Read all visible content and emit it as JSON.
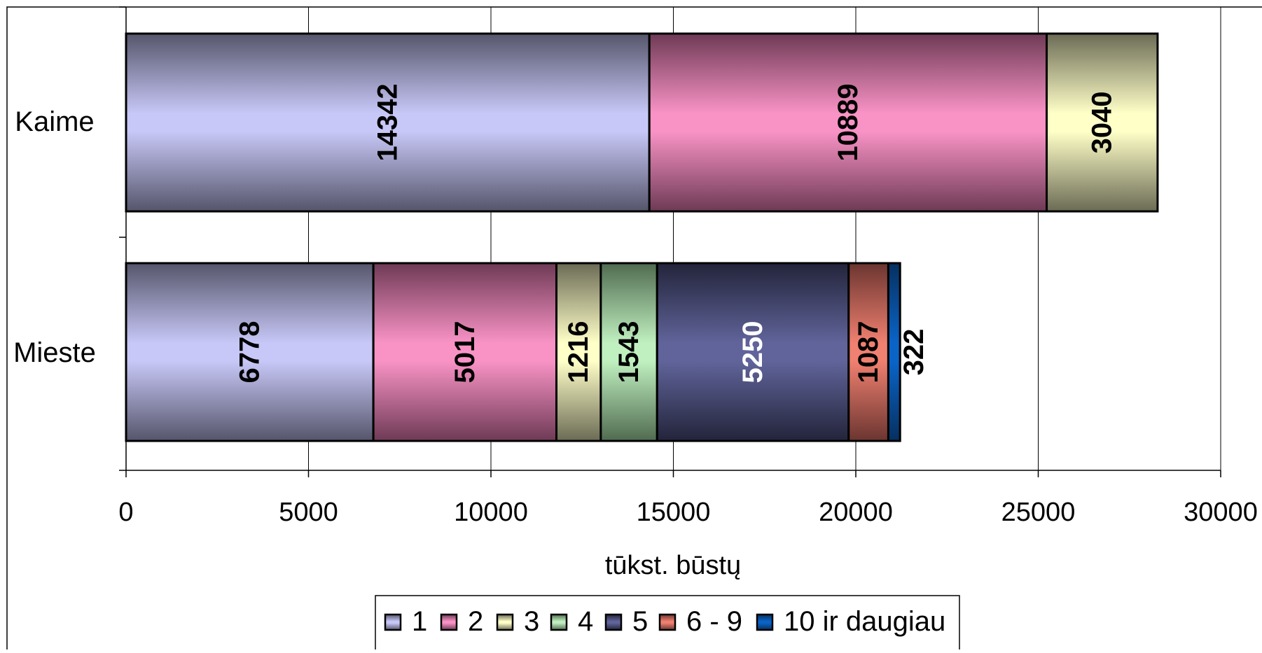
{
  "chart_data": {
    "type": "bar",
    "orientation": "horizontal",
    "stacked": true,
    "categories": [
      "Kaime",
      "Mieste"
    ],
    "series": [
      {
        "name": "1",
        "values": [
          14342,
          6778
        ],
        "color": "#c8c8f8",
        "shade": "#55556b",
        "label_color": "#000000"
      },
      {
        "name": "2",
        "values": [
          10889,
          5017
        ],
        "color": "#f993c6",
        "shade": "#6e3a55",
        "label_color": "#000000"
      },
      {
        "name": "3",
        "values": [
          3040,
          1216
        ],
        "color": "#ffffc8",
        "shade": "#6b6b55",
        "label_color": "#000000"
      },
      {
        "name": "4",
        "values": [
          null,
          1543
        ],
        "color": "#c0f0c0",
        "shade": "#506b50",
        "label_color": "#000000"
      },
      {
        "name": "5",
        "values": [
          null,
          5250
        ],
        "color": "#60649a",
        "shade": "#23243a",
        "label_color": "#ffffff"
      },
      {
        "name": "6 - 9",
        "values": [
          null,
          1087
        ],
        "color": "#f08070",
        "shade": "#6b3530",
        "label_color": "#000000"
      },
      {
        "name": "10 ir daugiau",
        "values": [
          null,
          322
        ],
        "color": "#0a64c8",
        "shade": "#06305f",
        "label_color": "#000000"
      }
    ],
    "xlabel": "tūkst. būstų",
    "ylabel": "",
    "xlim": [
      0,
      30000
    ],
    "xticks": [
      "0",
      "5000",
      "10000",
      "15000",
      "20000",
      "25000",
      "30000"
    ],
    "grid": true,
    "legend_position": "bottom"
  }
}
